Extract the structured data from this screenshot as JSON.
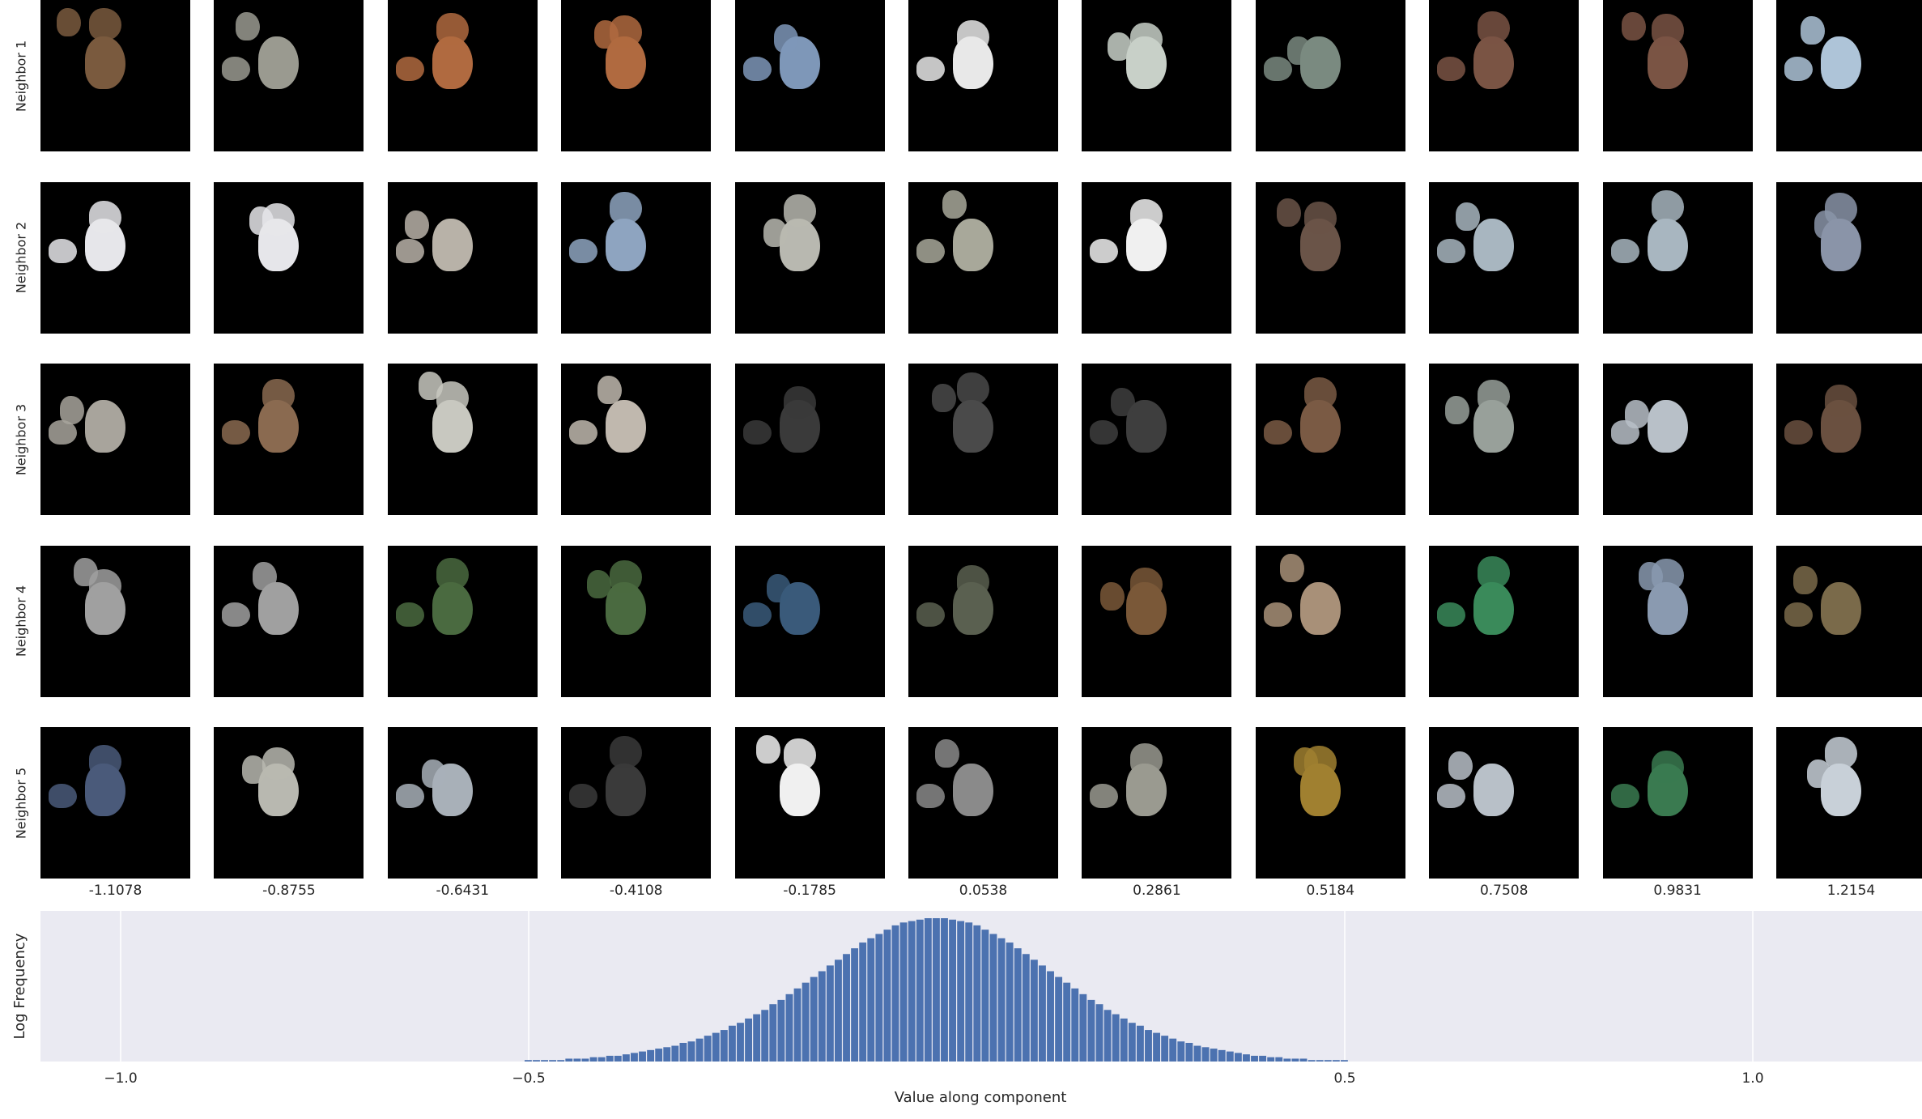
{
  "grid": {
    "row_labels": [
      "Neighbor 1",
      "Neighbor 2",
      "Neighbor 3",
      "Neighbor 4",
      "Neighbor 5"
    ],
    "column_values": [
      "-1.1078",
      "-0.8755",
      "-0.6431",
      "-0.4108",
      "-0.1785",
      "0.0538",
      "0.2861",
      "0.5184",
      "0.7508",
      "0.9831",
      "1.2154"
    ],
    "patch_colors": [
      [
        "#7a5a3e",
        "#9a9a90",
        "#b06a40",
        "#b06a40",
        "#7e97b8",
        "#e8e8e8",
        "#c8d0c8",
        "#7a8a80",
        "#7a5444",
        "#7a5444",
        "#aec4d8"
      ],
      [
        "#e6e6ea",
        "#e6e6ea",
        "#b8b2a8",
        "#8ea4c0",
        "#b8b8b0",
        "#a8a89a",
        "#f0f0f0",
        "#6a5448",
        "#a8b6c0",
        "#a8b6c0",
        "#8a94a8"
      ],
      [
        "#a8a49c",
        "#8a6a50",
        "#c8c8c0",
        "#c0b8ae",
        "#3a3a3a",
        "#4a4a4a",
        "#3e3e3e",
        "#7a5a44",
        "#98a09a",
        "#b8c0c8",
        "#6a5040"
      ],
      [
        "#a0a0a0",
        "#a0a0a0",
        "#4a6a40",
        "#4a6a40",
        "#3a5a7a",
        "#5a6050",
        "#7a5838",
        "#a89078",
        "#3a8a5a",
        "#8a9ab0",
        "#7a6a4a"
      ],
      [
        "#4a5a7a",
        "#b8b8b0",
        "#a8b0b8",
        "#3a3a3a",
        "#f0f0f0",
        "#8a8a8a",
        "#9a9a90",
        "#a08030",
        "#b8c0c8",
        "#3a7a50",
        "#c8d0d8"
      ]
    ],
    "colors": {
      "tile_background": "#000000"
    }
  },
  "chart_data": {
    "type": "bar",
    "title": "",
    "xlabel": "Value along component",
    "ylabel": "Log Frequency",
    "xlim": [
      -1.2,
      1.2
    ],
    "xticks": [
      -1.0,
      -0.5,
      0.5,
      1.0
    ],
    "xtick_labels": [
      "−1.0",
      "−0.5",
      "0.5",
      "1.0"
    ],
    "grid": true,
    "bin_width": 0.01,
    "x": [
      -0.5,
      -0.49,
      -0.48,
      -0.47,
      -0.46,
      -0.45,
      -0.44,
      -0.43,
      -0.42,
      -0.41,
      -0.4,
      -0.39,
      -0.38,
      -0.37,
      -0.36,
      -0.35,
      -0.34,
      -0.33,
      -0.32,
      -0.31,
      -0.3,
      -0.29,
      -0.28,
      -0.27,
      -0.26,
      -0.25,
      -0.24,
      -0.23,
      -0.22,
      -0.21,
      -0.2,
      -0.19,
      -0.18,
      -0.17,
      -0.16,
      -0.15,
      -0.14,
      -0.13,
      -0.12,
      -0.11,
      -0.1,
      -0.09,
      -0.08,
      -0.07,
      -0.06,
      -0.05,
      -0.04,
      -0.03,
      -0.02,
      -0.01,
      0.0,
      0.01,
      0.02,
      0.03,
      0.04,
      0.05,
      0.06,
      0.07,
      0.08,
      0.09,
      0.1,
      0.11,
      0.12,
      0.13,
      0.14,
      0.15,
      0.16,
      0.17,
      0.18,
      0.19,
      0.2,
      0.21,
      0.22,
      0.23,
      0.24,
      0.25,
      0.26,
      0.27,
      0.28,
      0.29,
      0.3,
      0.31,
      0.32,
      0.33,
      0.34,
      0.35,
      0.36,
      0.37,
      0.38,
      0.39,
      0.4,
      0.41,
      0.42,
      0.43,
      0.44,
      0.45,
      0.46,
      0.47,
      0.48,
      0.49,
      0.5
    ],
    "values": [
      0.01,
      0.01,
      0.01,
      0.01,
      0.01,
      0.02,
      0.02,
      0.02,
      0.03,
      0.03,
      0.04,
      0.04,
      0.05,
      0.06,
      0.07,
      0.08,
      0.09,
      0.1,
      0.11,
      0.13,
      0.14,
      0.16,
      0.18,
      0.2,
      0.22,
      0.25,
      0.27,
      0.3,
      0.33,
      0.36,
      0.4,
      0.43,
      0.47,
      0.51,
      0.55,
      0.59,
      0.63,
      0.67,
      0.71,
      0.75,
      0.79,
      0.83,
      0.86,
      0.89,
      0.92,
      0.95,
      0.97,
      0.98,
      0.99,
      1.0,
      1.0,
      1.0,
      0.99,
      0.98,
      0.97,
      0.95,
      0.92,
      0.89,
      0.86,
      0.83,
      0.79,
      0.75,
      0.71,
      0.67,
      0.63,
      0.59,
      0.55,
      0.51,
      0.47,
      0.43,
      0.4,
      0.36,
      0.33,
      0.3,
      0.27,
      0.25,
      0.22,
      0.2,
      0.18,
      0.16,
      0.14,
      0.13,
      0.11,
      0.1,
      0.09,
      0.08,
      0.07,
      0.06,
      0.05,
      0.04,
      0.04,
      0.03,
      0.03,
      0.02,
      0.02,
      0.02,
      0.01,
      0.01,
      0.01,
      0.01,
      0.01
    ],
    "colors": {
      "bar": "#4c72b0",
      "plot_background": "#eaeaf2",
      "grid": "#ffffff"
    }
  }
}
